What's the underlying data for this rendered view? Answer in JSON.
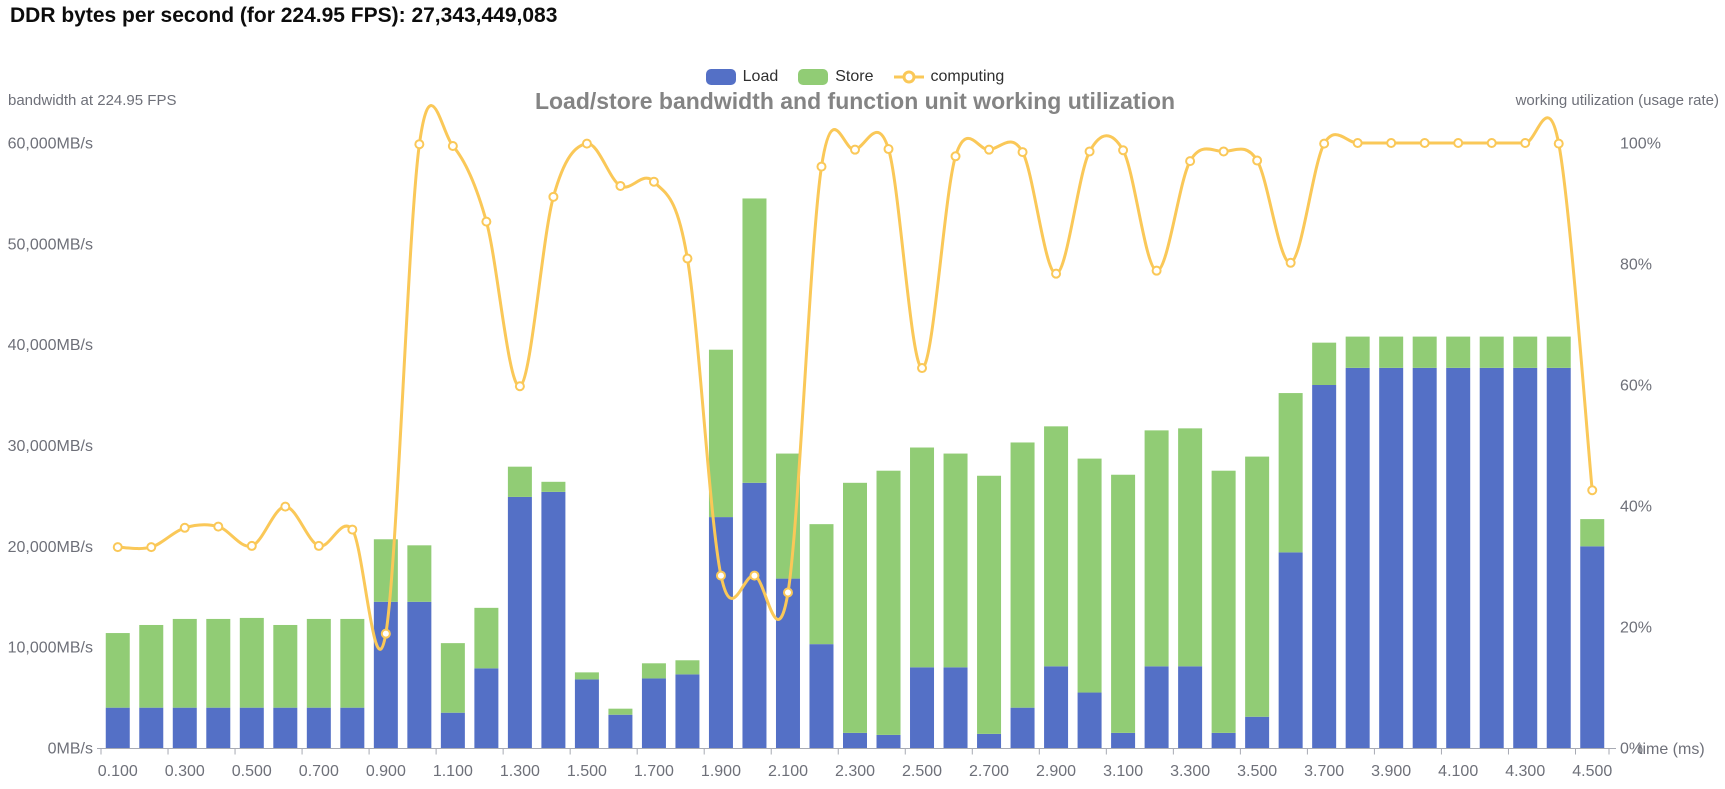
{
  "page_title": "DDR bytes per second (for 224.95 FPS): 27,343,449,083",
  "legend": {
    "items": [
      {
        "label": "Load",
        "type": "bar",
        "color": "#5470c6"
      },
      {
        "label": "Store",
        "type": "bar",
        "color": "#91cc75"
      },
      {
        "label": "computing",
        "type": "line",
        "color": "#fac858"
      }
    ]
  },
  "chart_title": "Load/store bandwidth and function unit working utilization",
  "axis_names": {
    "left": "bandwidth at 224.95 FPS",
    "right": "working utilization (usage rate)",
    "x": "time (ms)"
  },
  "chart_data": {
    "type": "bar-line-mixed",
    "title": "Load/store bandwidth and function unit working utilization",
    "categories": [
      "0.100",
      "0.200",
      "0.300",
      "0.400",
      "0.500",
      "0.600",
      "0.700",
      "0.800",
      "0.900",
      "1.000",
      "1.100",
      "1.200",
      "1.300",
      "1.400",
      "1.500",
      "1.600",
      "1.700",
      "1.800",
      "1.900",
      "2.000",
      "2.100",
      "2.200",
      "2.300",
      "2.400",
      "2.500",
      "2.600",
      "2.700",
      "2.800",
      "2.900",
      "3.000",
      "3.100",
      "3.200",
      "3.300",
      "3.400",
      "3.500",
      "3.600",
      "3.700",
      "3.800",
      "3.900",
      "4.000",
      "4.100",
      "4.200",
      "4.300",
      "4.400",
      "4.500"
    ],
    "x_label_interval": 2,
    "x_axis": {
      "name": "time (ms)"
    },
    "left_axis": {
      "name": "bandwidth at 224.95 FPS",
      "unit": "MB/s",
      "min": 0,
      "max": 60000,
      "tick_step": 10000
    },
    "right_axis": {
      "name": "working utilization (usage rate)",
      "unit": "%",
      "min": 0,
      "max": 100,
      "tick_step": 20
    },
    "grid_lines": false,
    "legend_position": "top-center",
    "series": [
      {
        "name": "Load",
        "type": "bar",
        "stack": "bandwidth",
        "axis": "left",
        "color": "#5470c6",
        "values": [
          4000,
          4000,
          4000,
          4000,
          4000,
          4000,
          4000,
          4000,
          14500,
          14500,
          3500,
          7900,
          24900,
          25400,
          6800,
          3300,
          6900,
          7300,
          22900,
          26300,
          16800,
          10300,
          1500,
          1300,
          8000,
          8000,
          1400,
          4000,
          8100,
          5500,
          1500,
          8100,
          8100,
          1500,
          3100,
          19400,
          36000,
          37700,
          37700,
          37700,
          37700,
          37700,
          37700,
          37700,
          20000
        ]
      },
      {
        "name": "Store",
        "type": "bar",
        "stack": "bandwidth",
        "axis": "left",
        "color": "#91cc75",
        "values": [
          7400,
          8200,
          8800,
          8800,
          8900,
          8200,
          8800,
          8800,
          6200,
          5600,
          6900,
          6000,
          3000,
          1000,
          700,
          600,
          1500,
          1400,
          16600,
          28200,
          12400,
          11900,
          24800,
          26200,
          21800,
          21200,
          25600,
          26300,
          23800,
          23200,
          25600,
          23400,
          23600,
          26000,
          25800,
          15800,
          4200,
          3100,
          3100,
          3100,
          3100,
          3100,
          3100,
          3100,
          2700
        ]
      },
      {
        "name": "computing",
        "type": "line",
        "smooth": true,
        "axis": "right",
        "color": "#fac858",
        "values": [
          33.2,
          33.2,
          36.4,
          36.6,
          33.4,
          39.9,
          33.4,
          36.1,
          18.9,
          99.8,
          99.5,
          87,
          59.8,
          91.1,
          99.9,
          92.9,
          93.6,
          80.9,
          28.5,
          28.5,
          25.7,
          96.1,
          98.9,
          99,
          62.8,
          97.8,
          98.9,
          98.5,
          78.4,
          98.6,
          98.8,
          78.9,
          97,
          98.6,
          97.1,
          80.2,
          99.9,
          100,
          100,
          100,
          100,
          100,
          100,
          99.9,
          42.6
        ]
      }
    ]
  }
}
